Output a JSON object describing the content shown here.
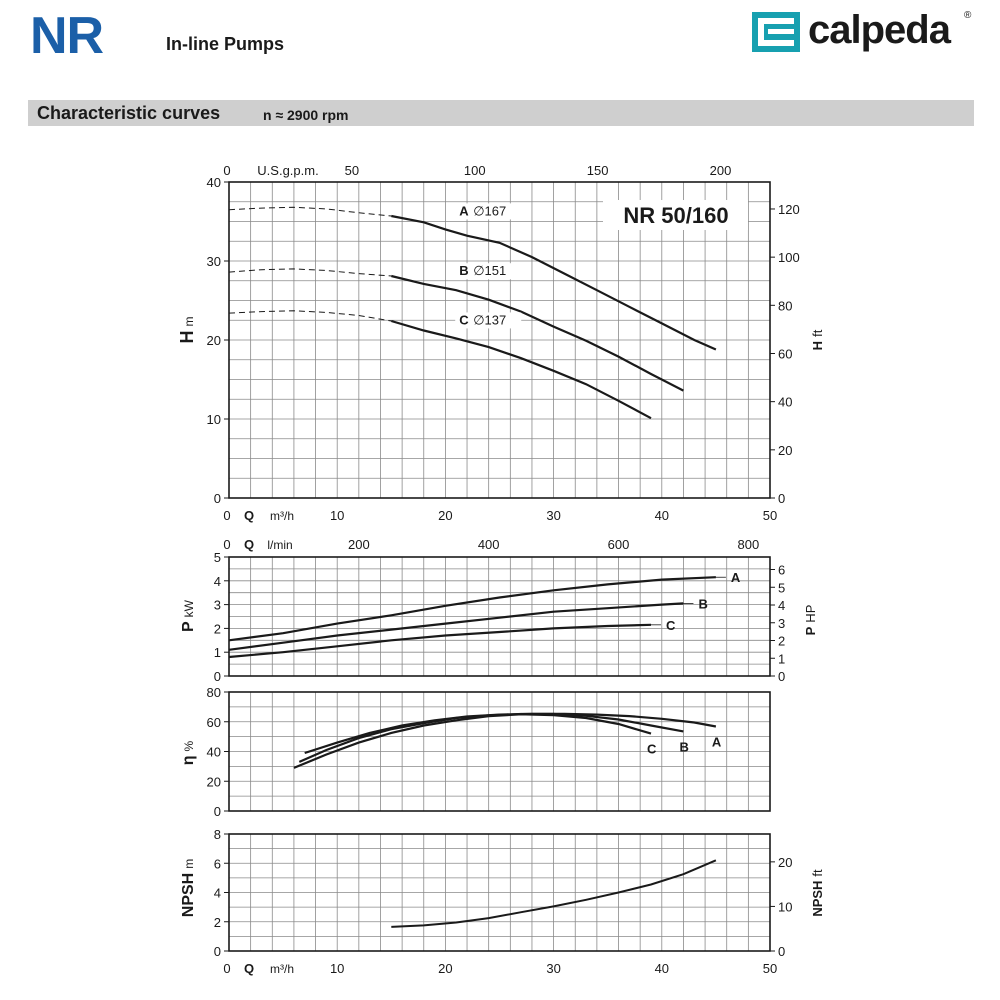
{
  "header": {
    "series_logo": "NR",
    "subtitle": "In-line Pumps",
    "brand_name": "calpeda",
    "brand_reg": "®",
    "section_title": "Characteristic curves",
    "speed_label": "n ≈ 2900 rpm"
  },
  "colors": {
    "logo_blue": "#1b5fa8",
    "brand_teal": "#17a0b0",
    "banner_gray": "#cfcfcf",
    "curve": "#1a1a1a"
  },
  "chart_data": [
    {
      "id": "head",
      "type": "line",
      "title": "NR 50/160",
      "xlabel": "Q m³/h",
      "x_ticks": [
        0,
        10,
        20,
        30,
        40,
        50
      ],
      "xlim": [
        0,
        50
      ],
      "top_axis_label": "U.S.g.p.m.",
      "top_ticks": [
        0,
        50,
        100,
        150,
        200
      ],
      "ylabel": "H m",
      "ylim": [
        0,
        40
      ],
      "y_ticks": [
        0,
        10,
        20,
        30,
        40
      ],
      "y2label": "H ft",
      "y2_ticks": [
        0,
        20,
        40,
        60,
        80,
        100,
        120
      ],
      "y2_max": 131.2,
      "series": [
        {
          "name": "A",
          "label": "A",
          "impeller": "∅167",
          "dashed": [
            [
              0,
              36.5
            ],
            [
              3,
              36.7
            ],
            [
              6,
              36.8
            ],
            [
              9,
              36.6
            ],
            [
              12,
              36.1
            ],
            [
              15,
              35.7
            ]
          ],
          "solid": [
            [
              15,
              35.7
            ],
            [
              18,
              34.9
            ],
            [
              20,
              34.0
            ],
            [
              22,
              33.2
            ],
            [
              25,
              32.3
            ],
            [
              28,
              30.5
            ],
            [
              31,
              28.4
            ],
            [
              34,
              26.3
            ],
            [
              37,
              24.2
            ],
            [
              40,
              22.1
            ],
            [
              43,
              20.0
            ],
            [
              45,
              18.8
            ]
          ]
        },
        {
          "name": "B",
          "label": "B",
          "impeller": "∅151",
          "dashed": [
            [
              0,
              28.6
            ],
            [
              3,
              28.9
            ],
            [
              6,
              29.0
            ],
            [
              9,
              28.8
            ],
            [
              12,
              28.4
            ],
            [
              15,
              28.1
            ]
          ],
          "solid": [
            [
              15,
              28.1
            ],
            [
              18,
              27.1
            ],
            [
              21,
              26.3
            ],
            [
              24,
              25.1
            ],
            [
              27,
              23.6
            ],
            [
              30,
              21.7
            ],
            [
              33,
              19.9
            ],
            [
              36,
              17.9
            ],
            [
              39,
              15.7
            ],
            [
              42,
              13.6
            ]
          ]
        },
        {
          "name": "C",
          "label": "C",
          "impeller": "∅137",
          "dashed": [
            [
              0,
              23.4
            ],
            [
              3,
              23.6
            ],
            [
              6,
              23.7
            ],
            [
              9,
              23.5
            ],
            [
              12,
              23.1
            ],
            [
              15,
              22.4
            ]
          ],
          "solid": [
            [
              15,
              22.4
            ],
            [
              18,
              21.2
            ],
            [
              21,
              20.2
            ],
            [
              24,
              19.1
            ],
            [
              27,
              17.7
            ],
            [
              30,
              16.1
            ],
            [
              33,
              14.4
            ],
            [
              36,
              12.3
            ],
            [
              39,
              10.1
            ]
          ]
        }
      ]
    },
    {
      "id": "power",
      "type": "line",
      "xlabel": "Q l/min",
      "x_ticks": [
        200,
        400,
        600,
        800
      ],
      "ylabel": "P kW",
      "ylim": [
        0,
        5
      ],
      "y_ticks": [
        0,
        1,
        2,
        3,
        4,
        5
      ],
      "y2label": "P HP",
      "y2_ticks": [
        0,
        1,
        2,
        3,
        4,
        5,
        6
      ],
      "y2_max": 6.705,
      "series": [
        {
          "name": "A",
          "label": "A",
          "points": [
            [
              0,
              1.5
            ],
            [
              5,
              1.8
            ],
            [
              10,
              2.2
            ],
            [
              15,
              2.55
            ],
            [
              20,
              2.95
            ],
            [
              25,
              3.3
            ],
            [
              30,
              3.6
            ],
            [
              35,
              3.85
            ],
            [
              40,
              4.05
            ],
            [
              45,
              4.15
            ]
          ]
        },
        {
          "name": "B",
          "label": "B",
          "points": [
            [
              0,
              1.1
            ],
            [
              5,
              1.4
            ],
            [
              10,
              1.7
            ],
            [
              15,
              1.95
            ],
            [
              20,
              2.2
            ],
            [
              25,
              2.45
            ],
            [
              30,
              2.7
            ],
            [
              35,
              2.85
            ],
            [
              40,
              3.0
            ],
            [
              42,
              3.05
            ]
          ]
        },
        {
          "name": "C",
          "label": "C",
          "points": [
            [
              0,
              0.8
            ],
            [
              5,
              1.0
            ],
            [
              10,
              1.25
            ],
            [
              15,
              1.5
            ],
            [
              20,
              1.7
            ],
            [
              25,
              1.85
            ],
            [
              30,
              2.0
            ],
            [
              35,
              2.1
            ],
            [
              39,
              2.15
            ]
          ]
        }
      ]
    },
    {
      "id": "efficiency",
      "type": "line",
      "ylabel": "η %",
      "ylim": [
        0,
        80
      ],
      "y_ticks": [
        0,
        20,
        40,
        60,
        80
      ],
      "series": [
        {
          "name": "A",
          "label": "A",
          "points": [
            [
              7,
              39
            ],
            [
              10,
              46
            ],
            [
              13,
              52.5
            ],
            [
              16,
              57.5
            ],
            [
              19,
              61
            ],
            [
              22,
              63.5
            ],
            [
              25,
              64.8
            ],
            [
              28,
              65.3
            ],
            [
              31,
              65.3
            ],
            [
              34,
              64.8
            ],
            [
              37,
              63.8
            ],
            [
              40,
              62
            ],
            [
              43,
              59.5
            ],
            [
              45,
              56.8
            ]
          ]
        },
        {
          "name": "B",
          "label": "B",
          "points": [
            [
              6.5,
              33
            ],
            [
              9,
              41
            ],
            [
              12,
              49
            ],
            [
              15,
              55
            ],
            [
              18,
              59
            ],
            [
              21,
              62.5
            ],
            [
              24,
              64.3
            ],
            [
              27,
              65.2
            ],
            [
              30,
              65.2
            ],
            [
              33,
              64
            ],
            [
              36,
              61.5
            ],
            [
              39,
              57.5
            ],
            [
              42,
              53.5
            ]
          ]
        },
        {
          "name": "C",
          "label": "C",
          "points": [
            [
              6,
              29
            ],
            [
              9,
              38
            ],
            [
              12,
              46
            ],
            [
              15,
              52.5
            ],
            [
              18,
              57.5
            ],
            [
              21,
              61
            ],
            [
              24,
              63.8
            ],
            [
              27,
              65
            ],
            [
              30,
              64.5
            ],
            [
              33,
              62.5
            ],
            [
              36,
              58.5
            ],
            [
              39,
              52
            ]
          ]
        }
      ]
    },
    {
      "id": "npsh",
      "type": "line",
      "xlabel": "Q m³/h",
      "x_ticks": [
        0,
        10,
        20,
        30,
        40,
        50
      ],
      "xlim": [
        0,
        50
      ],
      "ylabel": "NPSH m",
      "ylim": [
        0,
        8
      ],
      "y_ticks": [
        0,
        2,
        4,
        6,
        8
      ],
      "y2label": "NPSH ft",
      "y2_ticks": [
        0,
        10,
        20
      ],
      "y2_max": 26.25,
      "series": [
        {
          "name": "NPSH",
          "points": [
            [
              15,
              1.65
            ],
            [
              18,
              1.75
            ],
            [
              21,
              1.95
            ],
            [
              24,
              2.25
            ],
            [
              27,
              2.65
            ],
            [
              30,
              3.05
            ],
            [
              33,
              3.5
            ],
            [
              36,
              4.0
            ],
            [
              39,
              4.55
            ],
            [
              42,
              5.25
            ],
            [
              45,
              6.2
            ]
          ]
        }
      ]
    }
  ]
}
